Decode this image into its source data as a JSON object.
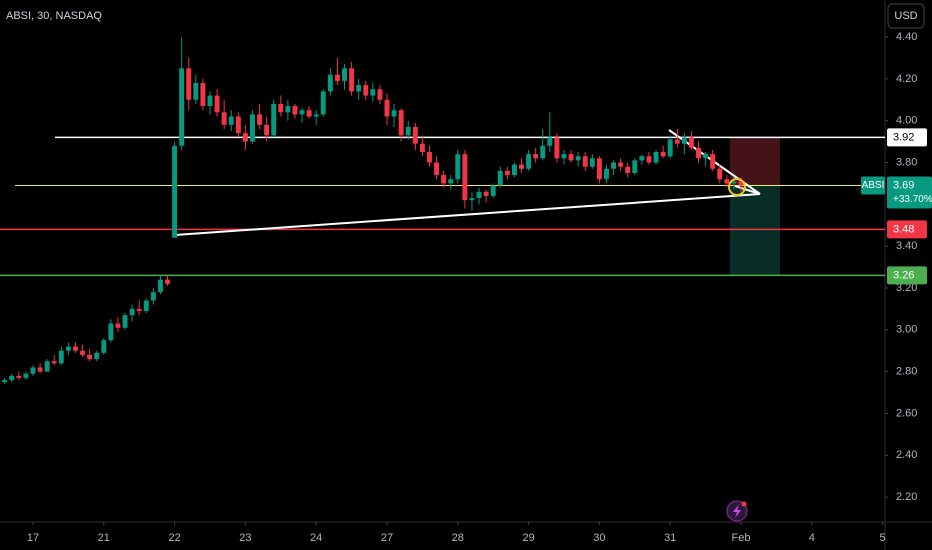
{
  "chart_data": {
    "type": "candlestick",
    "title": "ABSI, 30, NASDAQ",
    "currency": "USD",
    "x": [
      -0.4,
      -0.3,
      -0.2,
      -0.1,
      0,
      0.1,
      0.2,
      0.3,
      0.4,
      0.5,
      0.6,
      0.7,
      0.8,
      0.9,
      1,
      1.1,
      1.2,
      1.3,
      1.4,
      1.5,
      1.6,
      1.7,
      1.8,
      1.9,
      2,
      2.1,
      2.2,
      2.3,
      2.4,
      2.5,
      2.6,
      2.7,
      2.8,
      2.9,
      3,
      3.1,
      3.2,
      3.3,
      3.4,
      3.5,
      3.6,
      3.7,
      3.8,
      3.9,
      4,
      4.1,
      4.2,
      4.3,
      4.4,
      4.5,
      4.6,
      4.7,
      4.8,
      4.9,
      5,
      5.1,
      5.2,
      5.3,
      5.4,
      5.5,
      5.6,
      5.7,
      5.8,
      5.9,
      6,
      6.1,
      6.2,
      6.3,
      6.4,
      6.5,
      6.6,
      6.7,
      6.8,
      6.9,
      7,
      7.1,
      7.2,
      7.3,
      7.4,
      7.5,
      7.6,
      7.7,
      7.8,
      7.9,
      8,
      8.1,
      8.2,
      8.3,
      8.4,
      8.5,
      8.6,
      8.7,
      8.8,
      8.9,
      9,
      9.1,
      9.2,
      9.3,
      9.4,
      9.5,
      9.6,
      9.7,
      9.8,
      9.9,
      10
    ],
    "series": [
      {
        "name": "ABSI",
        "up_color": "#089981",
        "down_color": "#f23645",
        "open": [
          2.75,
          2.76,
          2.78,
          2.77,
          2.79,
          2.82,
          2.8,
          2.85,
          2.84,
          2.9,
          2.92,
          2.9,
          2.88,
          2.86,
          2.89,
          2.95,
          3.03,
          3.01,
          3.07,
          3.1,
          3.09,
          3.14,
          3.18,
          3.24,
          3.44,
          3.88,
          4.25,
          4.1,
          4.18,
          4.07,
          4.12,
          4.04,
          3.98,
          4.02,
          3.94,
          3.9,
          4.03,
          3.98,
          3.93,
          4.08,
          4.04,
          4.07,
          4.03,
          4.05,
          4.02,
          4.03,
          4.14,
          4.22,
          4.19,
          4.25,
          4.14,
          4.17,
          4.12,
          4.15,
          4.1,
          4.02,
          4.05,
          3.93,
          3.97,
          3.89,
          3.85,
          3.8,
          3.74,
          3.7,
          3.72,
          3.84,
          3.62,
          3.63,
          3.66,
          3.64,
          3.69,
          3.76,
          3.74,
          3.79,
          3.77,
          3.84,
          3.82,
          3.88,
          3.92,
          3.82,
          3.84,
          3.81,
          3.83,
          3.78,
          3.82,
          3.72,
          3.77,
          3.8,
          3.78,
          3.75,
          3.81,
          3.83,
          3.8,
          3.85,
          3.83,
          3.91,
          3.89,
          3.92,
          3.87,
          3.82,
          3.84,
          3.77,
          3.72,
          3.7,
          3.71
        ],
        "high": [
          2.77,
          2.79,
          2.8,
          2.8,
          2.83,
          2.84,
          2.86,
          2.88,
          2.92,
          2.94,
          2.94,
          2.93,
          2.91,
          2.9,
          2.96,
          3.05,
          3.06,
          3.08,
          3.12,
          3.14,
          3.15,
          3.2,
          3.26,
          3.26,
          3.9,
          4.4,
          4.3,
          4.22,
          4.2,
          4.14,
          4.15,
          4.1,
          4.05,
          4.04,
          3.98,
          4.05,
          4.08,
          4.02,
          4.1,
          4.12,
          4.1,
          4.08,
          4.06,
          4.07,
          4.05,
          4.15,
          4.25,
          4.3,
          4.27,
          4.28,
          4.2,
          4.19,
          4.18,
          4.17,
          4.13,
          4.08,
          4.06,
          4.0,
          3.99,
          3.93,
          3.88,
          3.83,
          3.76,
          3.74,
          3.86,
          3.86,
          3.66,
          3.68,
          3.67,
          3.7,
          3.78,
          3.78,
          3.8,
          3.82,
          3.86,
          3.87,
          3.96,
          4.04,
          3.94,
          3.86,
          3.86,
          3.85,
          3.85,
          3.84,
          3.83,
          3.79,
          3.81,
          3.82,
          3.8,
          3.82,
          3.84,
          3.85,
          3.86,
          3.88,
          3.93,
          3.96,
          3.94,
          3.95,
          3.9,
          3.85,
          3.86,
          3.79,
          3.74,
          3.73,
          3.73
        ],
        "low": [
          2.74,
          2.75,
          2.76,
          2.76,
          2.78,
          2.79,
          2.8,
          2.83,
          2.83,
          2.88,
          2.89,
          2.87,
          2.85,
          2.85,
          2.88,
          2.94,
          2.99,
          3.0,
          3.04,
          3.07,
          3.08,
          3.12,
          3.17,
          3.21,
          3.44,
          3.86,
          4.05,
          4.08,
          4.05,
          4.03,
          4.02,
          3.96,
          3.95,
          3.92,
          3.86,
          3.89,
          3.96,
          3.9,
          3.92,
          4.02,
          4.0,
          4.01,
          3.99,
          4.01,
          3.98,
          4.02,
          4.12,
          4.17,
          4.15,
          4.12,
          4.1,
          4.1,
          4.09,
          4.08,
          3.98,
          3.97,
          3.9,
          3.91,
          3.86,
          3.83,
          3.78,
          3.72,
          3.68,
          3.67,
          3.7,
          3.58,
          3.57,
          3.6,
          3.61,
          3.63,
          3.68,
          3.72,
          3.73,
          3.75,
          3.76,
          3.8,
          3.81,
          3.85,
          3.8,
          3.79,
          3.8,
          3.78,
          3.76,
          3.77,
          3.7,
          3.7,
          3.74,
          3.76,
          3.73,
          3.74,
          3.79,
          3.79,
          3.79,
          3.82,
          3.82,
          3.87,
          3.84,
          3.86,
          3.8,
          3.78,
          3.76,
          3.7,
          3.68,
          3.67,
          3.66
        ],
        "close": [
          2.76,
          2.78,
          2.77,
          2.79,
          2.82,
          2.8,
          2.85,
          2.84,
          2.9,
          2.92,
          2.9,
          2.88,
          2.86,
          2.89,
          2.95,
          3.03,
          3.01,
          3.07,
          3.1,
          3.09,
          3.14,
          3.18,
          3.24,
          3.22,
          3.88,
          4.25,
          4.1,
          4.18,
          4.07,
          4.12,
          4.04,
          3.98,
          4.02,
          3.94,
          3.9,
          4.03,
          3.98,
          3.93,
          4.08,
          4.04,
          4.07,
          4.03,
          4.05,
          4.02,
          4.03,
          4.14,
          4.22,
          4.19,
          4.25,
          4.14,
          4.17,
          4.12,
          4.15,
          4.1,
          4.02,
          4.05,
          3.93,
          3.97,
          3.89,
          3.85,
          3.8,
          3.74,
          3.7,
          3.72,
          3.84,
          3.62,
          3.63,
          3.66,
          3.64,
          3.69,
          3.76,
          3.74,
          3.79,
          3.77,
          3.84,
          3.82,
          3.88,
          3.92,
          3.82,
          3.84,
          3.81,
          3.83,
          3.78,
          3.82,
          3.72,
          3.77,
          3.8,
          3.78,
          3.75,
          3.81,
          3.83,
          3.8,
          3.85,
          3.83,
          3.91,
          3.89,
          3.92,
          3.87,
          3.82,
          3.84,
          3.77,
          3.72,
          3.7,
          3.71,
          3.69
        ]
      }
    ],
    "xlim": [
      -0.466,
      12.034
    ],
    "xticks": [
      {
        "value": 0,
        "label": "17"
      },
      {
        "value": 1,
        "label": "21"
      },
      {
        "value": 2,
        "label": "22"
      },
      {
        "value": 3,
        "label": "23"
      },
      {
        "value": 4,
        "label": "24"
      },
      {
        "value": 5,
        "label": "27"
      },
      {
        "value": 6,
        "label": "28"
      },
      {
        "value": 7,
        "label": "29"
      },
      {
        "value": 8,
        "label": "30"
      },
      {
        "value": 9,
        "label": "31"
      },
      {
        "value": 10,
        "label": "Feb"
      },
      {
        "value": 11,
        "label": "4"
      },
      {
        "value": 12,
        "label": "5"
      }
    ],
    "ylim": [
      2.081,
      4.577
    ],
    "yticks": [
      {
        "value": 4.4,
        "label": "4.40"
      },
      {
        "value": 4.2,
        "label": "4.20"
      },
      {
        "value": 4.0,
        "label": "4.00"
      },
      {
        "value": 3.8,
        "label": "3.80"
      },
      {
        "value": 3.4,
        "label": "3.40"
      },
      {
        "value": 3.2,
        "label": "3.20"
      },
      {
        "value": 3.0,
        "label": "3.00"
      },
      {
        "value": 2.8,
        "label": "2.80"
      },
      {
        "value": 2.6,
        "label": "2.60"
      },
      {
        "value": 2.4,
        "label": "2.40"
      },
      {
        "value": 2.2,
        "label": "2.20"
      }
    ],
    "grid": false,
    "last_price": {
      "symbol": "ABSI",
      "value": 3.69,
      "change": "+33.70%",
      "color": "#089981",
      "line_color": "#f5e94c"
    },
    "levels": [
      {
        "value": 3.92,
        "color": "#ffffff",
        "text_color": "#000000"
      },
      {
        "value": 3.48,
        "color": "#f23645",
        "text_color": "#ffffff"
      },
      {
        "value": 3.26,
        "color": "#4caf50",
        "text_color": "#ffffff"
      }
    ]
  }
}
